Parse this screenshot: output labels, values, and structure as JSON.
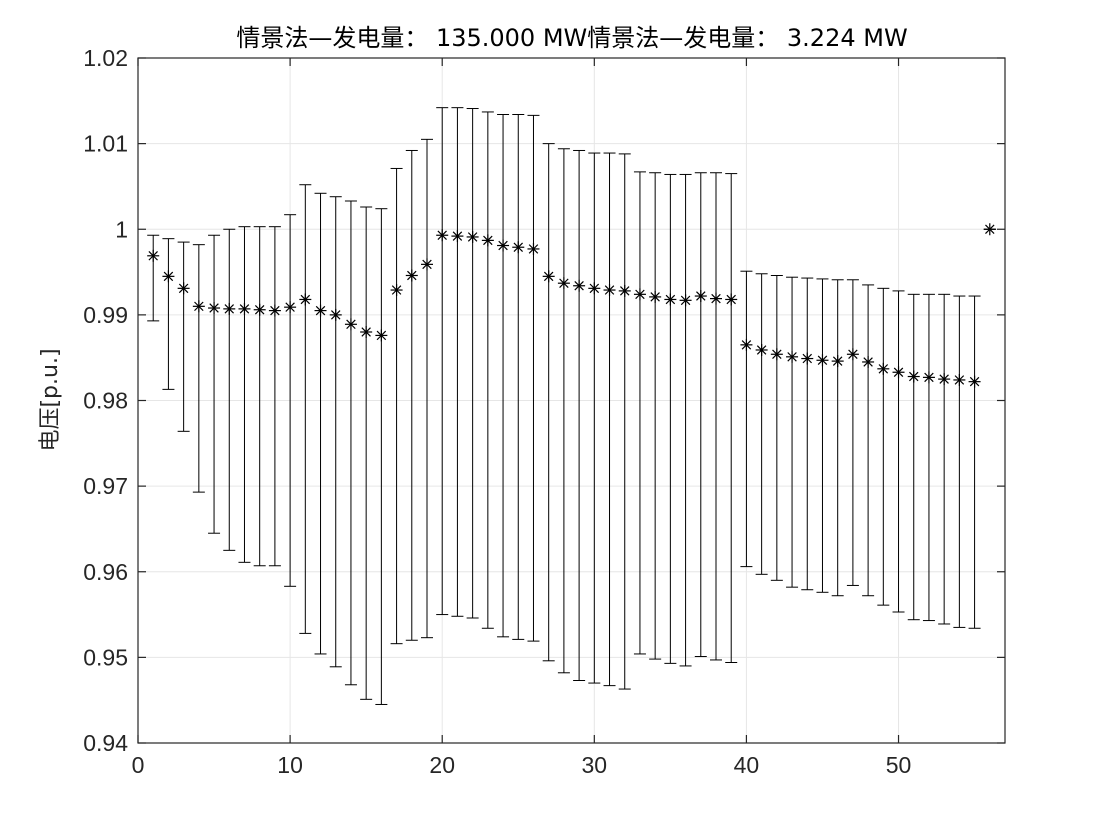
{
  "chart_data": {
    "type": "scatter",
    "title": "情景法—发电量： 135.000 MW情景法—发电量： 3.224 MW",
    "xlabel": "",
    "ylabel": "电压[p.u.]",
    "xlim": [
      0,
      57
    ],
    "ylim": [
      0.94,
      1.02
    ],
    "xticks": [
      "0",
      "10",
      "20",
      "30",
      "40",
      "50"
    ],
    "xtick_values": [
      0,
      10,
      20,
      30,
      40,
      50
    ],
    "yticks": [
      "0.94",
      "0.95",
      "0.96",
      "0.97",
      "0.98",
      "0.99",
      "1",
      "1.01",
      "1.02"
    ],
    "ytick_values": [
      0.94,
      0.95,
      0.96,
      0.97,
      0.98,
      0.99,
      1.0,
      1.01,
      1.02
    ],
    "grid": true,
    "marker": "asterisk",
    "series": [
      {
        "x": [
          1,
          2,
          3,
          4,
          5,
          6,
          7,
          8,
          9,
          10,
          11,
          12,
          13,
          14,
          15,
          16,
          17,
          18,
          19,
          20,
          21,
          22,
          23,
          24,
          25,
          26,
          27,
          28,
          29,
          30,
          31,
          32,
          33,
          34,
          35,
          36,
          37,
          38,
          39,
          40,
          41,
          42,
          43,
          44,
          45,
          46,
          47,
          48,
          49,
          50,
          51,
          52,
          53,
          54,
          55,
          56
        ],
        "y": [
          0.9969,
          0.9945,
          0.9931,
          0.991,
          0.9908,
          0.9907,
          0.9907,
          0.9906,
          0.9905,
          0.9909,
          0.9918,
          0.9905,
          0.99,
          0.9889,
          0.988,
          0.9876,
          0.9929,
          0.9946,
          0.9959,
          0.9993,
          0.9992,
          0.9991,
          0.9987,
          0.9981,
          0.9979,
          0.9977,
          0.9945,
          0.9937,
          0.9934,
          0.9931,
          0.9929,
          0.9928,
          0.9924,
          0.9921,
          0.9918,
          0.9917,
          0.9922,
          0.9919,
          0.9918,
          0.9865,
          0.9859,
          0.9854,
          0.9851,
          0.9849,
          0.9847,
          0.9846,
          0.9854,
          0.9845,
          0.9837,
          0.9833,
          0.9828,
          0.9827,
          0.9825,
          0.9824,
          0.9822,
          1.0
        ],
        "y_upper": [
          0.9993,
          0.9989,
          0.9985,
          0.9982,
          0.9993,
          1.0,
          1.0003,
          1.0003,
          1.0003,
          1.0017,
          1.0052,
          1.0042,
          1.0038,
          1.0033,
          1.0026,
          1.0024,
          1.0071,
          1.0092,
          1.0105,
          1.0142,
          1.0142,
          1.0141,
          1.0137,
          1.0134,
          1.0134,
          1.0133,
          1.01,
          1.0094,
          1.0092,
          1.0089,
          1.0089,
          1.0088,
          1.0067,
          1.0066,
          1.0064,
          1.0064,
          1.0066,
          1.0066,
          1.0065,
          0.9951,
          0.9948,
          0.9946,
          0.9944,
          0.9943,
          0.9942,
          0.9941,
          0.9941,
          0.9935,
          0.9931,
          0.9928,
          0.9924,
          0.9924,
          0.9924,
          0.9922,
          0.9922,
          1.0
        ],
        "y_lower": [
          0.9893,
          0.9813,
          0.9764,
          0.9693,
          0.9645,
          0.9625,
          0.9611,
          0.9607,
          0.9607,
          0.9583,
          0.9528,
          0.9504,
          0.9489,
          0.9468,
          0.9451,
          0.9445,
          0.9516,
          0.952,
          0.9523,
          0.955,
          0.9548,
          0.9546,
          0.9534,
          0.9524,
          0.9521,
          0.9519,
          0.9496,
          0.9482,
          0.9473,
          0.947,
          0.9467,
          0.9463,
          0.9504,
          0.9498,
          0.9493,
          0.949,
          0.9501,
          0.9497,
          0.9494,
          0.9606,
          0.9597,
          0.959,
          0.9582,
          0.9579,
          0.9576,
          0.9572,
          0.9584,
          0.9572,
          0.9561,
          0.9553,
          0.9544,
          0.9543,
          0.9539,
          0.9535,
          0.9534,
          1.0
        ]
      }
    ]
  }
}
